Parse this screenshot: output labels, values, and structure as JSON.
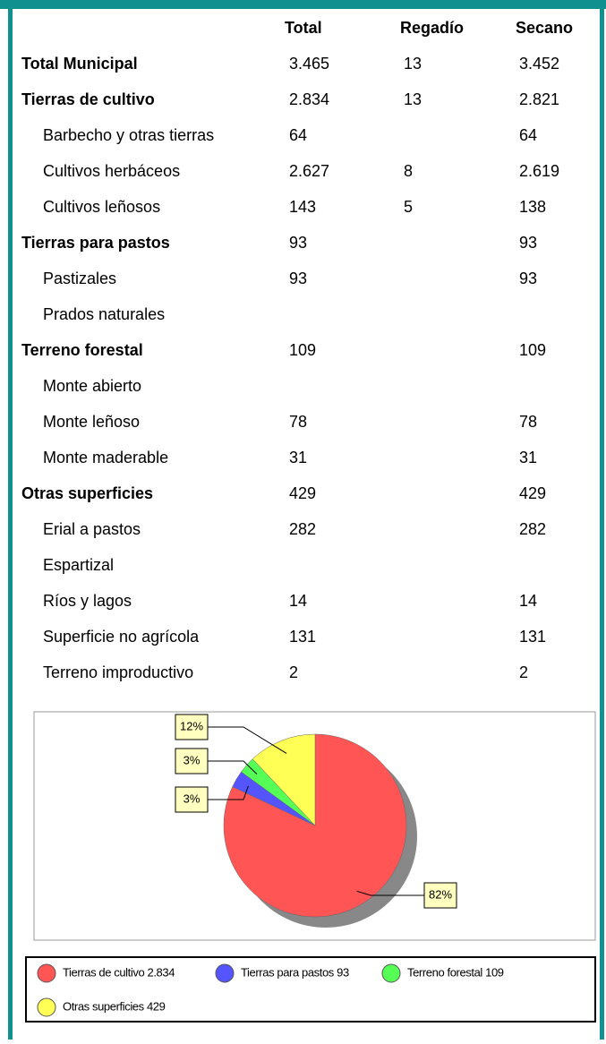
{
  "table": {
    "columns": [
      "Total",
      "Regadío",
      "Secano"
    ],
    "sections": [
      {
        "label": "Total Municipal",
        "values": [
          "3.465",
          "13",
          "3.452"
        ],
        "items": []
      },
      {
        "label": "Tierras de cultivo",
        "values": [
          "2.834",
          "13",
          "2.821"
        ],
        "items": [
          {
            "label": "Barbecho y otras tierras",
            "values": [
              "64",
              null,
              "64"
            ]
          },
          {
            "label": "Cultivos herbáceos",
            "values": [
              "2.627",
              "8",
              "2.619"
            ]
          },
          {
            "label": "Cultivos leñosos",
            "values": [
              "143",
              "5",
              "138"
            ]
          }
        ]
      },
      {
        "label": "Tierras para pastos",
        "values": [
          "93",
          null,
          "93"
        ],
        "items": [
          {
            "label": "Pastizales",
            "values": [
              "93",
              null,
              "93"
            ]
          },
          {
            "label": "Prados naturales",
            "values": [
              null,
              null,
              null
            ]
          }
        ]
      },
      {
        "label": "Terreno forestal",
        "values": [
          "109",
          null,
          "109"
        ],
        "items": [
          {
            "label": "Monte abierto",
            "values": [
              null,
              null,
              null
            ]
          },
          {
            "label": "Monte leñoso",
            "values": [
              "78",
              null,
              "78"
            ]
          },
          {
            "label": "Monte maderable",
            "values": [
              "31",
              null,
              "31"
            ]
          }
        ]
      },
      {
        "label": "Otras superficies",
        "values": [
          "429",
          null,
          "429"
        ],
        "items": [
          {
            "label": "Erial a pastos",
            "values": [
              "282",
              null,
              "282"
            ]
          },
          {
            "label": "Espartizal",
            "values": [
              null,
              null,
              null
            ]
          },
          {
            "label": "Ríos y lagos",
            "values": [
              "14",
              null,
              "14"
            ]
          },
          {
            "label": "Superficie no agrícola",
            "values": [
              "131",
              null,
              "131"
            ]
          },
          {
            "label": "Terreno improductivo",
            "values": [
              "2",
              null,
              "2"
            ]
          }
        ]
      }
    ]
  },
  "chart_data": {
    "type": "pie",
    "categories": [
      "Tierras de cultivo 2.834",
      "Tierras para pastos 93",
      "Terreno forestal 109",
      "Otras superficies 429"
    ],
    "values": [
      82,
      3,
      3,
      12
    ],
    "value_labels": [
      "82%",
      "3%",
      "3%",
      "12%"
    ],
    "colors": [
      "#ff5555",
      "#5555ff",
      "#55ff55",
      "#ffff55"
    ]
  }
}
